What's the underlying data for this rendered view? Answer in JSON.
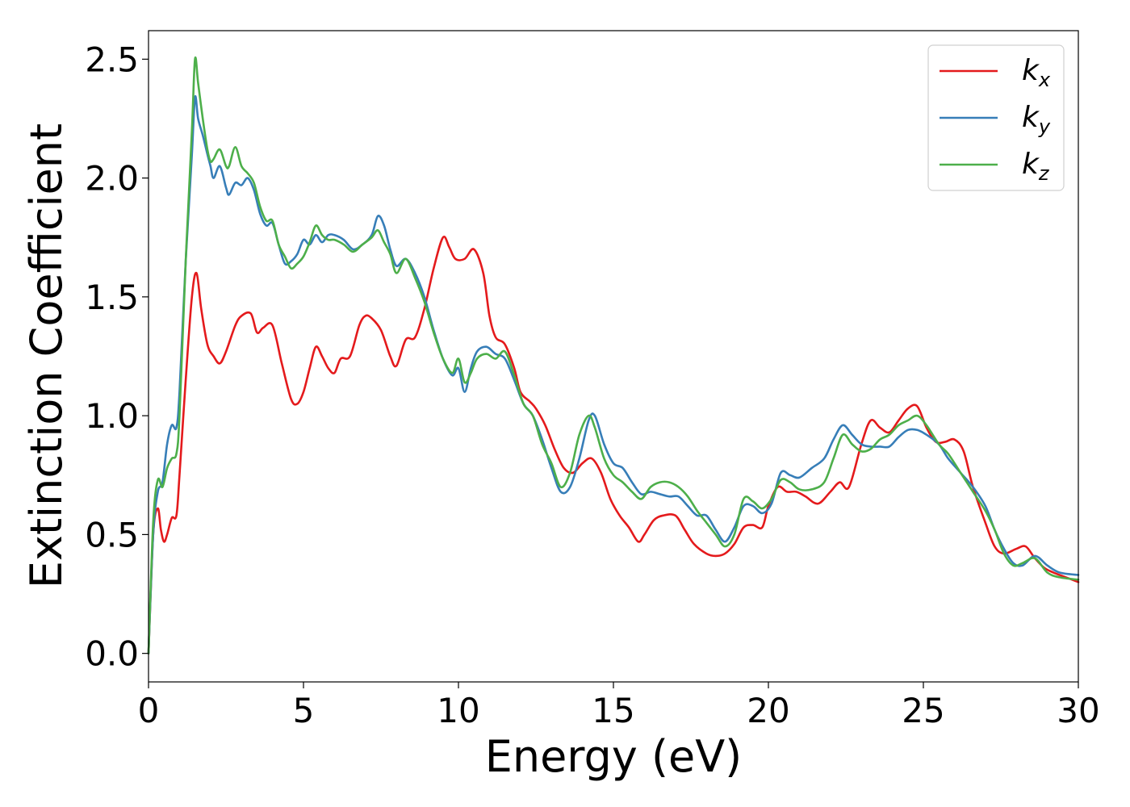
{
  "chart_data": {
    "type": "line",
    "title": "",
    "xlabel": "Energy (eV)",
    "ylabel": "Extinction Coefficient",
    "xlim": [
      0,
      30
    ],
    "ylim": [
      -0.12,
      2.62
    ],
    "xticks": [
      0,
      5,
      10,
      15,
      20,
      25,
      30
    ],
    "xtick_labels": [
      "0",
      "5",
      "10",
      "15",
      "20",
      "25",
      "30"
    ],
    "yticks": [
      0.0,
      0.5,
      1.0,
      1.5,
      2.0,
      2.5
    ],
    "ytick_labels": [
      "0.0",
      "0.5",
      "1.0",
      "1.5",
      "2.0",
      "2.5"
    ],
    "grid": false,
    "legend_position": "top-right",
    "series": [
      {
        "name": "k",
        "name_sub": "x",
        "color": "#e41a1c",
        "x": [
          0,
          0.15,
          0.3,
          0.4,
          0.5,
          0.6,
          0.75,
          0.9,
          1.0,
          1.2,
          1.4,
          1.55,
          1.7,
          1.9,
          2.1,
          2.3,
          2.5,
          2.8,
          3.0,
          3.3,
          3.5,
          3.7,
          4.0,
          4.3,
          4.6,
          4.8,
          5.0,
          5.2,
          5.4,
          5.6,
          5.8,
          6.0,
          6.2,
          6.5,
          6.8,
          7.0,
          7.2,
          7.5,
          7.8,
          8.0,
          8.3,
          8.6,
          8.9,
          9.2,
          9.5,
          9.7,
          9.9,
          10.2,
          10.5,
          10.8,
          11.0,
          11.2,
          11.5,
          11.8,
          12.0,
          12.3,
          12.5,
          12.8,
          13.1,
          13.4,
          13.7,
          14.0,
          14.3,
          14.6,
          14.9,
          15.2,
          15.5,
          15.8,
          16.0,
          16.3,
          16.6,
          17.0,
          17.3,
          17.6,
          18.0,
          18.3,
          18.6,
          18.9,
          19.2,
          19.5,
          19.8,
          20.0,
          20.3,
          20.6,
          20.9,
          21.2,
          21.6,
          22.0,
          22.3,
          22.6,
          23.0,
          23.3,
          23.6,
          23.9,
          24.2,
          24.5,
          24.8,
          25.1,
          25.4,
          25.7,
          26.0,
          26.3,
          26.6,
          27.0,
          27.3,
          27.6,
          28.0,
          28.3,
          28.6,
          28.9,
          29.2,
          29.6,
          30.0
        ],
        "y": [
          0.0,
          0.5,
          0.61,
          0.52,
          0.47,
          0.5,
          0.57,
          0.58,
          0.75,
          1.15,
          1.5,
          1.6,
          1.45,
          1.3,
          1.25,
          1.22,
          1.27,
          1.38,
          1.42,
          1.43,
          1.35,
          1.37,
          1.38,
          1.22,
          1.07,
          1.05,
          1.1,
          1.2,
          1.29,
          1.25,
          1.2,
          1.18,
          1.24,
          1.25,
          1.38,
          1.42,
          1.41,
          1.36,
          1.25,
          1.21,
          1.32,
          1.33,
          1.45,
          1.62,
          1.75,
          1.71,
          1.66,
          1.66,
          1.7,
          1.6,
          1.42,
          1.33,
          1.3,
          1.2,
          1.1,
          1.06,
          1.03,
          0.96,
          0.86,
          0.78,
          0.76,
          0.8,
          0.82,
          0.76,
          0.65,
          0.58,
          0.53,
          0.47,
          0.5,
          0.56,
          0.58,
          0.58,
          0.52,
          0.46,
          0.42,
          0.41,
          0.42,
          0.46,
          0.53,
          0.54,
          0.53,
          0.62,
          0.7,
          0.68,
          0.68,
          0.66,
          0.63,
          0.68,
          0.72,
          0.7,
          0.88,
          0.98,
          0.95,
          0.93,
          0.98,
          1.03,
          1.04,
          0.95,
          0.89,
          0.89,
          0.9,
          0.85,
          0.7,
          0.55,
          0.45,
          0.42,
          0.44,
          0.45,
          0.4,
          0.36,
          0.34,
          0.32,
          0.3
        ]
      },
      {
        "name": "k",
        "name_sub": "y",
        "color": "#377eb8",
        "x": [
          0,
          0.15,
          0.3,
          0.45,
          0.6,
          0.75,
          0.9,
          1.0,
          1.2,
          1.4,
          1.5,
          1.6,
          1.75,
          1.9,
          2.0,
          2.1,
          2.3,
          2.5,
          2.6,
          2.8,
          3.0,
          3.2,
          3.4,
          3.6,
          3.8,
          4.0,
          4.2,
          4.4,
          4.6,
          4.8,
          5.0,
          5.2,
          5.4,
          5.6,
          5.8,
          6.0,
          6.3,
          6.6,
          6.9,
          7.2,
          7.4,
          7.6,
          7.8,
          8.0,
          8.3,
          8.6,
          8.9,
          9.2,
          9.5,
          9.8,
          10.0,
          10.2,
          10.4,
          10.6,
          10.9,
          11.2,
          11.5,
          11.8,
          12.1,
          12.4,
          12.7,
          13.0,
          13.3,
          13.6,
          13.9,
          14.2,
          14.4,
          14.7,
          15.0,
          15.3,
          15.6,
          15.9,
          16.2,
          16.5,
          16.8,
          17.1,
          17.4,
          17.7,
          18.0,
          18.3,
          18.6,
          18.9,
          19.2,
          19.5,
          19.8,
          20.1,
          20.4,
          20.7,
          21.0,
          21.4,
          21.8,
          22.1,
          22.4,
          22.7,
          23.0,
          23.3,
          23.6,
          23.9,
          24.2,
          24.5,
          24.8,
          25.1,
          25.5,
          25.8,
          26.2,
          26.6,
          27.0,
          27.3,
          27.6,
          27.9,
          28.2,
          28.6,
          29.0,
          29.4,
          30.0
        ],
        "y": [
          0.0,
          0.5,
          0.68,
          0.72,
          0.88,
          0.96,
          0.95,
          1.1,
          1.65,
          2.1,
          2.34,
          2.25,
          2.18,
          2.1,
          2.05,
          2.0,
          2.05,
          1.96,
          1.93,
          1.98,
          1.97,
          2.0,
          1.95,
          1.85,
          1.8,
          1.81,
          1.72,
          1.64,
          1.65,
          1.68,
          1.74,
          1.72,
          1.76,
          1.73,
          1.76,
          1.76,
          1.74,
          1.7,
          1.72,
          1.76,
          1.84,
          1.8,
          1.7,
          1.63,
          1.66,
          1.6,
          1.5,
          1.36,
          1.24,
          1.17,
          1.2,
          1.1,
          1.2,
          1.27,
          1.29,
          1.26,
          1.24,
          1.15,
          1.05,
          1.0,
          0.9,
          0.78,
          0.68,
          0.7,
          0.82,
          0.98,
          1.0,
          0.88,
          0.8,
          0.78,
          0.72,
          0.67,
          0.68,
          0.67,
          0.66,
          0.66,
          0.62,
          0.58,
          0.58,
          0.52,
          0.47,
          0.53,
          0.62,
          0.62,
          0.59,
          0.63,
          0.76,
          0.75,
          0.74,
          0.78,
          0.82,
          0.9,
          0.96,
          0.92,
          0.88,
          0.87,
          0.87,
          0.87,
          0.91,
          0.94,
          0.94,
          0.92,
          0.88,
          0.82,
          0.76,
          0.7,
          0.62,
          0.52,
          0.44,
          0.38,
          0.37,
          0.41,
          0.37,
          0.34,
          0.33
        ]
      },
      {
        "name": "k",
        "name_sub": "z",
        "color": "#4daf4a",
        "x": [
          0,
          0.15,
          0.3,
          0.45,
          0.6,
          0.75,
          0.9,
          1.0,
          1.2,
          1.4,
          1.5,
          1.6,
          1.75,
          1.9,
          2.0,
          2.1,
          2.3,
          2.5,
          2.6,
          2.8,
          3.0,
          3.2,
          3.4,
          3.6,
          3.8,
          4.0,
          4.2,
          4.4,
          4.6,
          4.8,
          5.0,
          5.2,
          5.4,
          5.6,
          5.8,
          6.0,
          6.3,
          6.6,
          6.9,
          7.2,
          7.4,
          7.6,
          7.8,
          8.0,
          8.3,
          8.6,
          8.9,
          9.2,
          9.5,
          9.8,
          10.0,
          10.2,
          10.4,
          10.6,
          10.9,
          11.2,
          11.5,
          11.8,
          12.1,
          12.4,
          12.7,
          13.0,
          13.3,
          13.6,
          13.9,
          14.2,
          14.4,
          14.7,
          15.0,
          15.3,
          15.6,
          15.9,
          16.2,
          16.5,
          16.8,
          17.1,
          17.4,
          17.7,
          18.0,
          18.3,
          18.6,
          18.9,
          19.2,
          19.5,
          19.8,
          20.1,
          20.4,
          20.7,
          21.0,
          21.4,
          21.8,
          22.1,
          22.4,
          22.7,
          23.0,
          23.3,
          23.6,
          23.9,
          24.2,
          24.5,
          24.8,
          25.1,
          25.5,
          25.8,
          26.2,
          26.6,
          27.0,
          27.3,
          27.6,
          27.9,
          28.2,
          28.6,
          29.0,
          29.4,
          30.0
        ],
        "y": [
          0.0,
          0.55,
          0.73,
          0.7,
          0.78,
          0.82,
          0.84,
          1.0,
          1.65,
          2.2,
          2.5,
          2.4,
          2.25,
          2.12,
          2.07,
          2.08,
          2.12,
          2.05,
          2.05,
          2.13,
          2.05,
          2.02,
          1.98,
          1.88,
          1.82,
          1.82,
          1.72,
          1.67,
          1.62,
          1.64,
          1.67,
          1.73,
          1.8,
          1.76,
          1.74,
          1.74,
          1.72,
          1.69,
          1.72,
          1.75,
          1.78,
          1.73,
          1.68,
          1.6,
          1.66,
          1.58,
          1.48,
          1.35,
          1.24,
          1.18,
          1.24,
          1.14,
          1.18,
          1.24,
          1.26,
          1.24,
          1.27,
          1.17,
          1.05,
          1.0,
          0.88,
          0.8,
          0.7,
          0.76,
          0.92,
          1.0,
          0.95,
          0.82,
          0.75,
          0.72,
          0.68,
          0.65,
          0.7,
          0.72,
          0.72,
          0.7,
          0.66,
          0.6,
          0.55,
          0.5,
          0.45,
          0.5,
          0.65,
          0.64,
          0.61,
          0.65,
          0.73,
          0.72,
          0.69,
          0.69,
          0.72,
          0.82,
          0.92,
          0.88,
          0.85,
          0.86,
          0.9,
          0.92,
          0.96,
          0.98,
          1.0,
          0.96,
          0.88,
          0.84,
          0.76,
          0.68,
          0.6,
          0.52,
          0.42,
          0.37,
          0.38,
          0.4,
          0.34,
          0.32,
          0.31
        ]
      }
    ]
  }
}
